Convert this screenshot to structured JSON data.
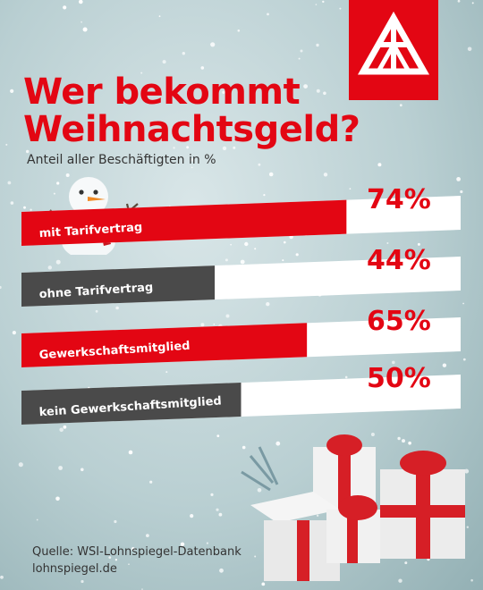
{
  "logo": {
    "text": "IGM",
    "color": "#e30613"
  },
  "title_line1": "Wer bekommt",
  "title_line2": "Weihnachtsgeld?",
  "subtitle": "Anteil aller Beschäftigten in %",
  "source_line1": "Quelle: WSI-Lohnspiegel-Datenbank",
  "source_line2": "lohnspiegel.de",
  "colors": {
    "red": "#e30613",
    "gray": "#4a4a4a",
    "white": "#ffffff"
  },
  "chart_data": {
    "type": "bar",
    "title": "Wer bekommt Weihnachtsgeld?",
    "subtitle": "Anteil aller Beschäftigten in %",
    "categories": [
      "mit Tarifvertrag",
      "ohne Tarifvertrag",
      "Gewerkschaftsmitglied",
      "kein Gewerkschaftsmitglied"
    ],
    "values": [
      74,
      44,
      65,
      50
    ],
    "value_labels": [
      "74%",
      "44%",
      "65%",
      "50%"
    ],
    "bar_colors": [
      "#e30613",
      "#4a4a4a",
      "#e30613",
      "#4a4a4a"
    ],
    "orientation": "horizontal",
    "ylim": [
      0,
      100
    ]
  }
}
